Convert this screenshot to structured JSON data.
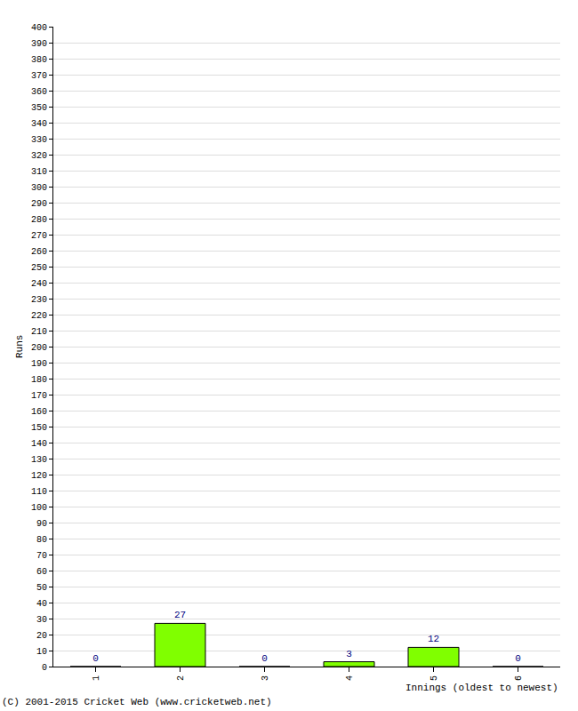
{
  "chart_data": {
    "type": "bar",
    "x_label": "Innings (oldest to newest)",
    "y_label": "Runs",
    "categories": [
      "1",
      "2",
      "3",
      "4",
      "5",
      "6"
    ],
    "values": [
      0,
      27,
      0,
      3,
      12,
      0
    ],
    "color": "#80ff00",
    "data_labels": true,
    "ylim": [
      0,
      400
    ],
    "yticks": [
      0,
      10,
      20,
      30,
      40,
      50,
      60,
      70,
      80,
      90,
      100,
      110,
      120,
      130,
      140,
      150,
      160,
      170,
      180,
      190,
      200,
      210,
      220,
      230,
      240,
      250,
      260,
      270,
      280,
      290,
      300,
      310,
      320,
      330,
      340,
      350,
      360,
      370,
      380,
      390,
      400
    ],
    "grid": true,
    "annotations": [
      "(C) 2001-2015 Cricket Web (www.cricketweb.net)"
    ]
  }
}
